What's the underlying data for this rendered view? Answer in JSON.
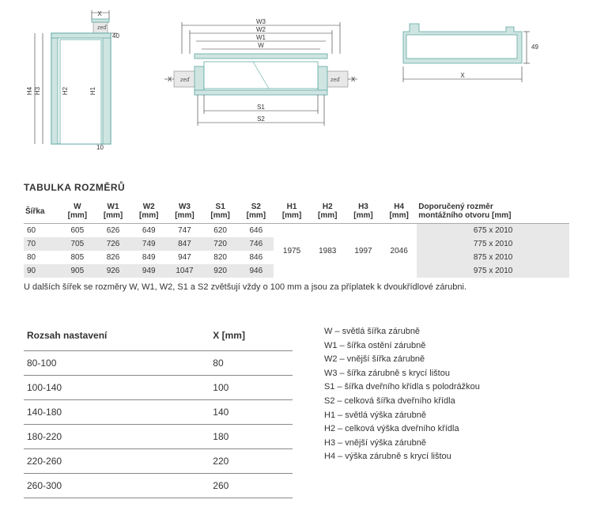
{
  "titles": {
    "main": "TABULKA ROZMĚRŮ",
    "range_col": "Rozsah nastavení",
    "x_col": "X [mm]"
  },
  "table1": {
    "headers": [
      "Šířka",
      "W\n[mm]",
      "W1\n[mm]",
      "W2\n[mm]",
      "W3\n[mm]",
      "S1\n[mm]",
      "S2\n[mm]",
      "H1\n[mm]",
      "H2\n[mm]",
      "H3\n[mm]",
      "H4\n[mm]",
      "Doporučený rozměr\nmontážního otvoru [mm]"
    ],
    "rows": [
      [
        "60",
        "605",
        "626",
        "649",
        "747",
        "620",
        "646",
        "",
        "",
        "",
        "",
        "675 x 2010"
      ],
      [
        "70",
        "705",
        "726",
        "749",
        "847",
        "720",
        "746",
        "",
        "",
        "",
        "",
        "775 x 2010"
      ],
      [
        "80",
        "805",
        "826",
        "849",
        "947",
        "820",
        "846",
        "1975",
        "1983",
        "1997",
        "2046",
        "875 x 2010"
      ],
      [
        "90",
        "905",
        "926",
        "949",
        "1047",
        "920",
        "946",
        "",
        "",
        "",
        "",
        "975 x 2010"
      ]
    ],
    "h_values": {
      "H1": "1975",
      "H2": "1983",
      "H3": "1997",
      "H4": "2046"
    }
  },
  "note": "U dalších šířek se rozměry W, W1, W2, S1 a S2 zvětšují vždy o 100 mm a jsou za příplatek k dvoukřídlové zárubni.",
  "table2": {
    "rows": [
      [
        "80-100",
        "80"
      ],
      [
        "100-140",
        "100"
      ],
      [
        "140-180",
        "140"
      ],
      [
        "180-220",
        "180"
      ],
      [
        "220-260",
        "220"
      ],
      [
        "260-300",
        "260"
      ]
    ]
  },
  "legend": [
    "W – světlá šířka zárubně",
    "W1 – šířka ostění zárubně",
    "W2 – vnější šířka zárubně",
    "W3 – šířka zárubně s krycí lištou",
    "S1 – šířka dveřního křídla s polodrážkou",
    "S2 – celková šířka dveřního křídla",
    "H1 – světlá výška zárubně",
    "H2 – celková výška dveřního křídla",
    "H3 – vnější výška zárubně",
    "H4 – výška zárubně s krycí lištou"
  ],
  "diagram_labels": {
    "X": "X",
    "W": "W",
    "W1": "W1",
    "W2": "W2",
    "W3": "W3",
    "S1": "S1",
    "S2": "S2",
    "H1": "H1",
    "H2": "H2",
    "H3": "H3",
    "H4": "H4",
    "zed": "zeď",
    "forty": "40",
    "ten": "10",
    "fortynine": "49"
  },
  "colors": {
    "frame": "#cfe5e2",
    "frame_stroke": "#5fa8a2",
    "bg": "#ffffff",
    "grid": "#e8e8e8"
  }
}
